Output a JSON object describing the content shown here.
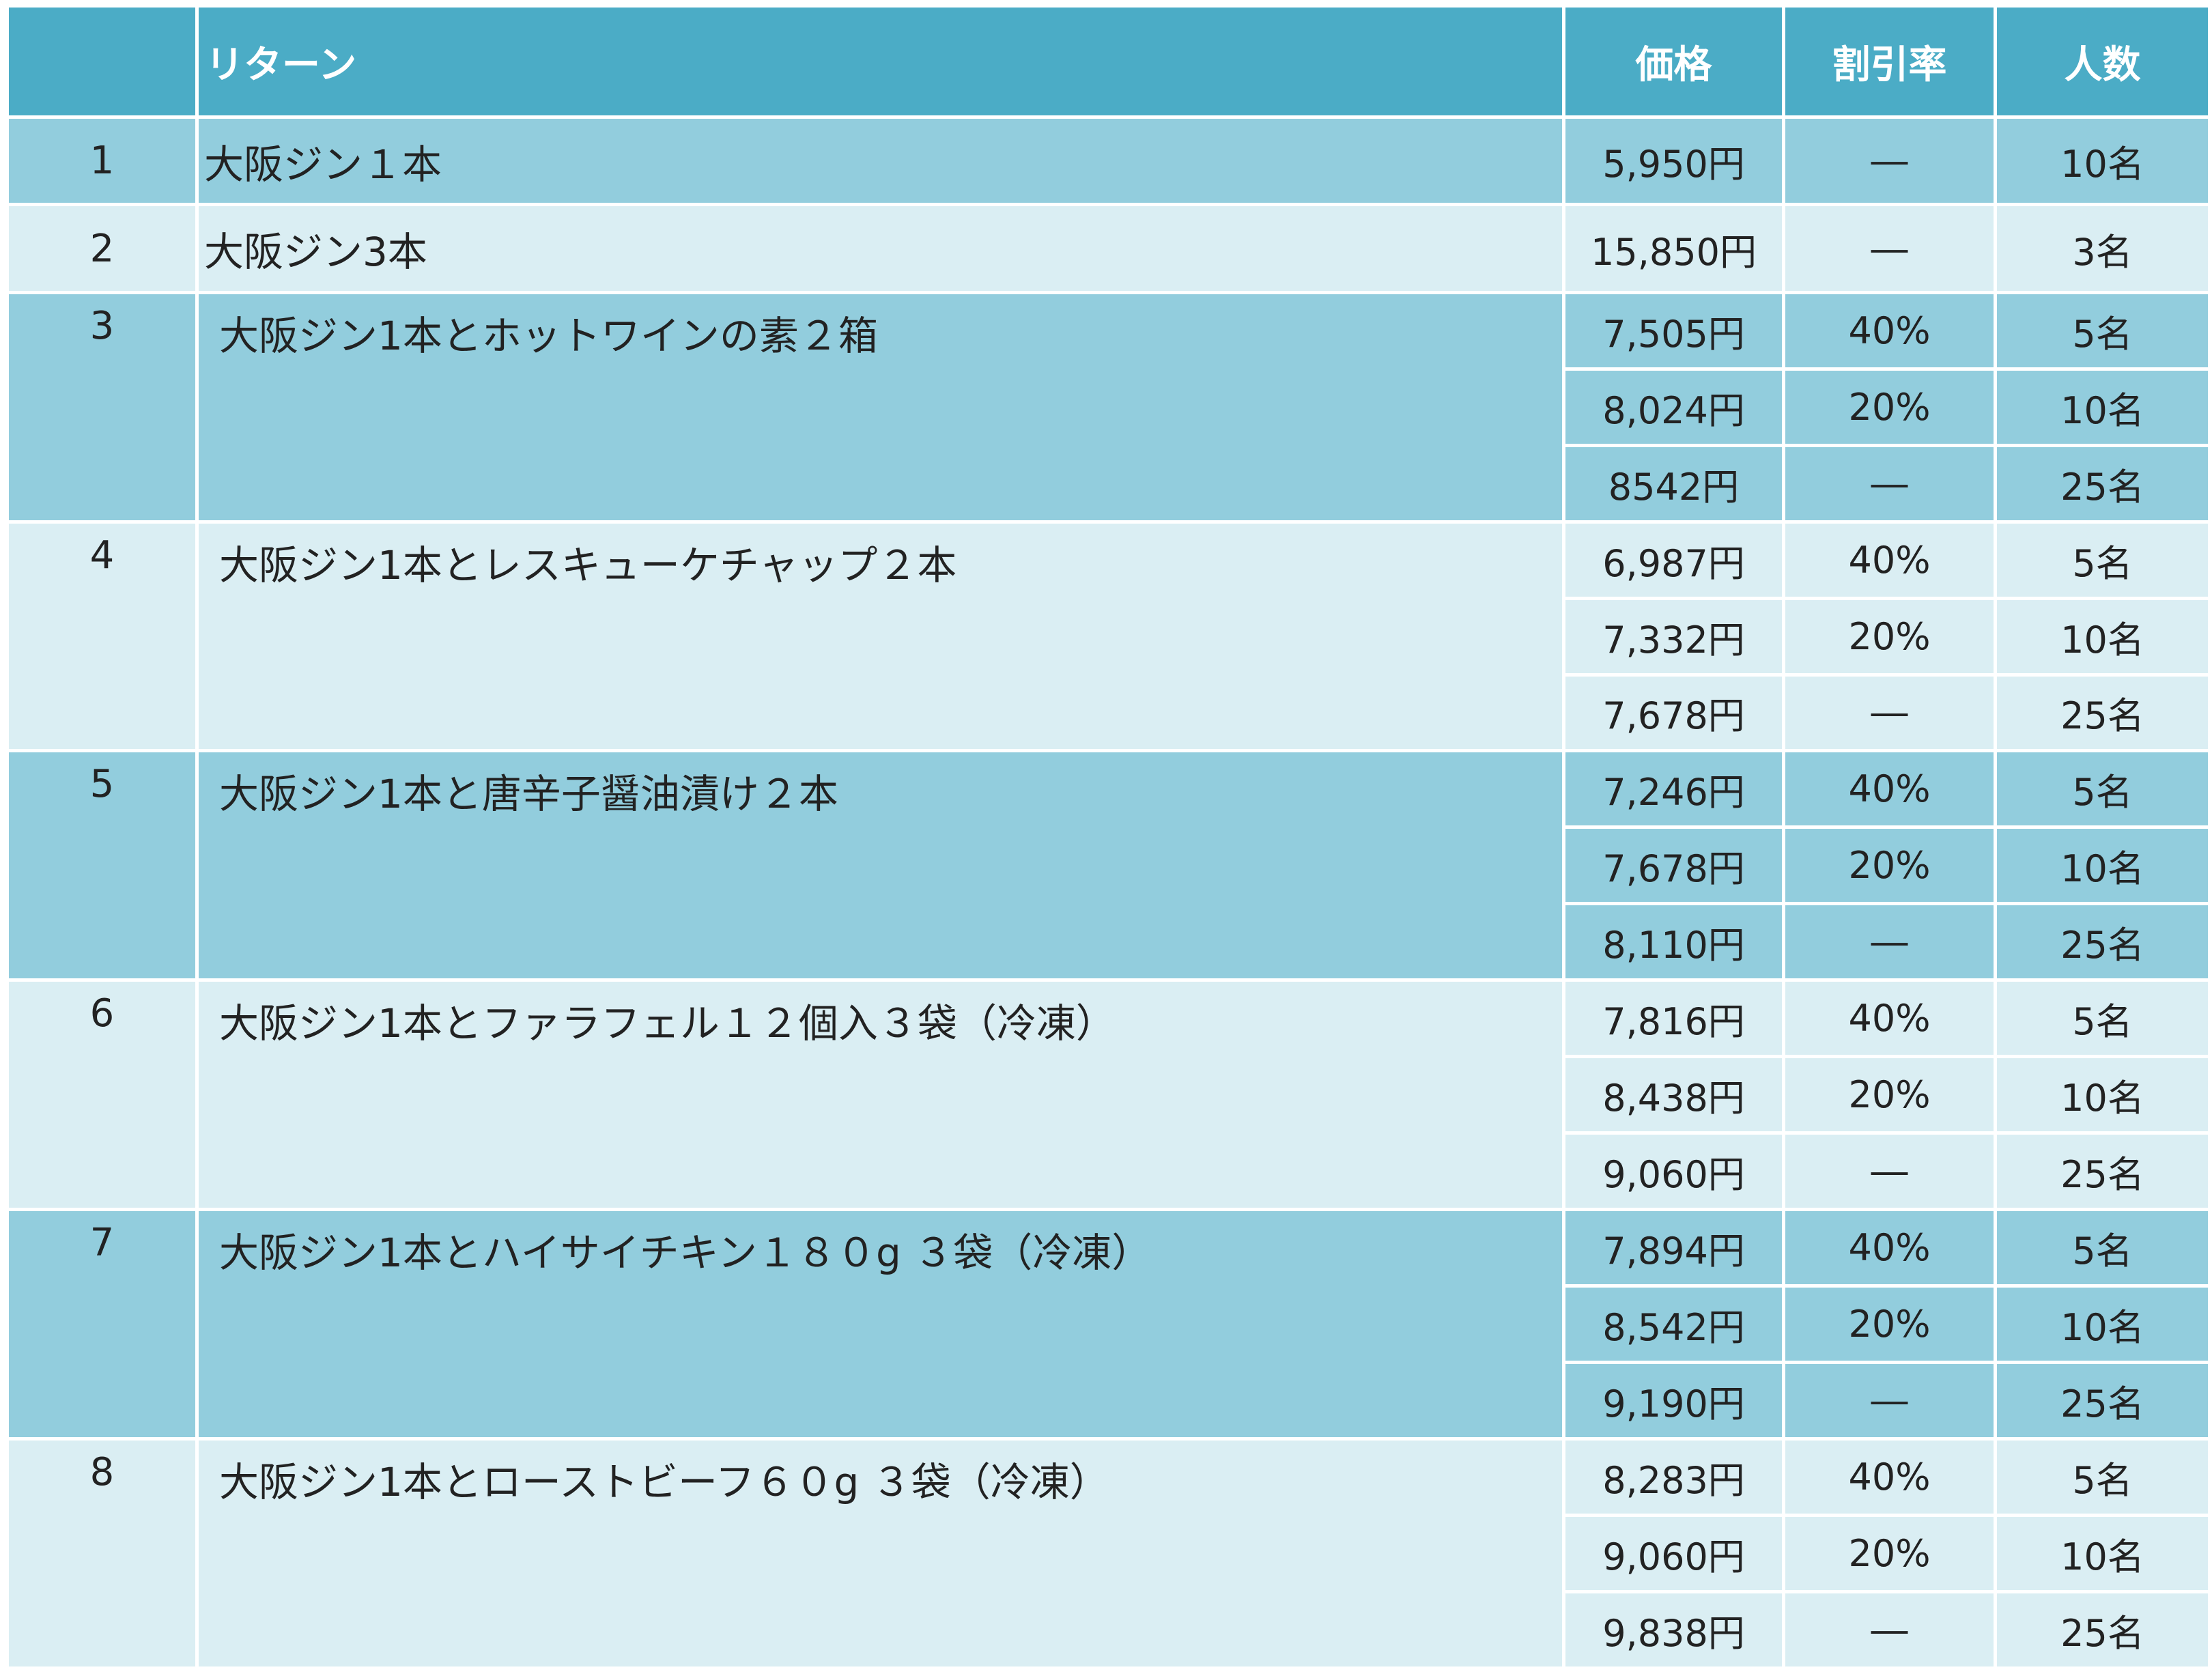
{
  "columns": {
    "no": "",
    "name": "リターン",
    "price": "価格",
    "discount": "割引率",
    "count": "人数"
  },
  "rows": [
    {
      "no": "1",
      "name": "大阪ジン１本",
      "options": [
        {
          "price": "5,950円",
          "discount": "―",
          "count": "10名"
        }
      ]
    },
    {
      "no": "2",
      "name": "大阪ジン3本",
      "options": [
        {
          "price": "15,850円",
          "discount": "―",
          "count": "3名"
        }
      ]
    },
    {
      "no": "3",
      "name": "大阪ジン1本とホットワインの素２箱",
      "options": [
        {
          "price": "7,505円",
          "discount": "40%",
          "count": "5名"
        },
        {
          "price": "8,024円",
          "discount": "20%",
          "count": "10名"
        },
        {
          "price": "8542円",
          "discount": "―",
          "count": "25名"
        }
      ]
    },
    {
      "no": "4",
      "name": "大阪ジン1本とレスキューケチャップ２本",
      "options": [
        {
          "price": "6,987円",
          "discount": "40%",
          "count": "5名"
        },
        {
          "price": "7,332円",
          "discount": "20%",
          "count": "10名"
        },
        {
          "price": "7,678円",
          "discount": "―",
          "count": "25名"
        }
      ]
    },
    {
      "no": "5",
      "name": "大阪ジン1本と唐辛子醤油漬け２本",
      "options": [
        {
          "price": "7,246円",
          "discount": "40%",
          "count": "5名"
        },
        {
          "price": "7,678円",
          "discount": "20%",
          "count": "10名"
        },
        {
          "price": "8,110円",
          "discount": "―",
          "count": "25名"
        }
      ]
    },
    {
      "no": "6",
      "name": "大阪ジン1本とファラフェル１２個入３袋（冷凍）",
      "options": [
        {
          "price": "7,816円",
          "discount": "40%",
          "count": "5名"
        },
        {
          "price": "8,438円",
          "discount": "20%",
          "count": "10名"
        },
        {
          "price": "9,060円",
          "discount": "―",
          "count": "25名"
        }
      ]
    },
    {
      "no": "7",
      "name": "大阪ジン1本とハイサイチキン１８０g ３袋（冷凍）",
      "options": [
        {
          "price": "7,894円",
          "discount": "40%",
          "count": "5名"
        },
        {
          "price": "8,542円",
          "discount": "20%",
          "count": "10名"
        },
        {
          "price": "9,190円",
          "discount": "―",
          "count": "25名"
        }
      ]
    },
    {
      "no": "8",
      "name": "大阪ジン1本とローストビーフ６０g ３袋（冷凍）",
      "options": [
        {
          "price": "8,283円",
          "discount": "40%",
          "count": "5名"
        },
        {
          "price": "9,060円",
          "discount": "20%",
          "count": "10名"
        },
        {
          "price": "9,838円",
          "discount": "―",
          "count": "25名"
        }
      ]
    }
  ],
  "colors": {
    "header_bg": "#4bacc6",
    "band_dark": "#92cddd",
    "band_light": "#daeef3",
    "grid": "#ffffff"
  }
}
